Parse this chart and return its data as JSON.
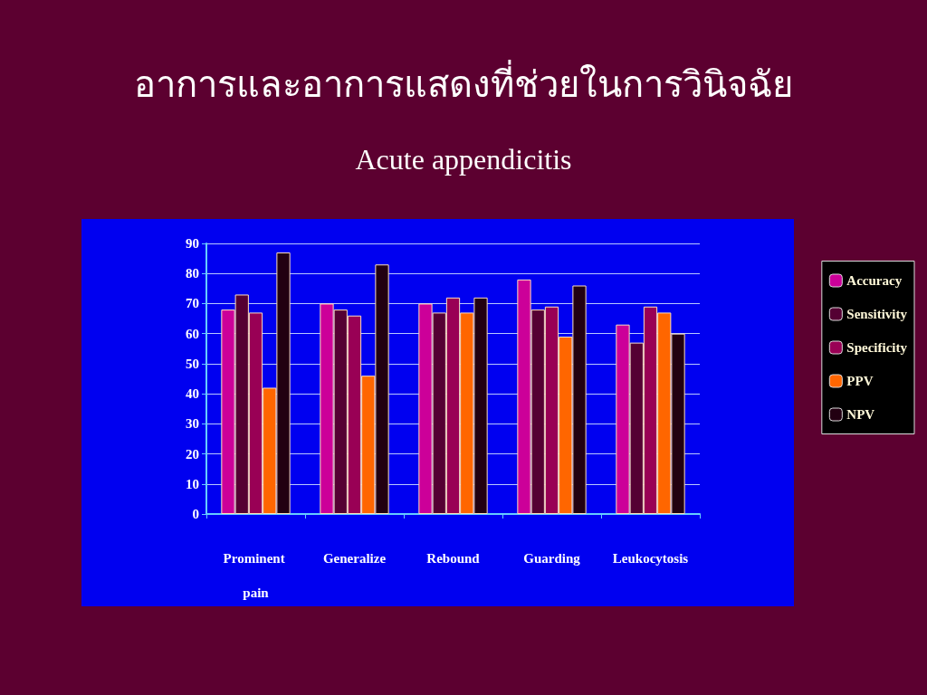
{
  "chart_data": {
    "type": "bar",
    "title": "อาการและอาการแสดงที่ช่วยในการวินิจฉัย",
    "subtitle": "Acute appendicitis",
    "categories": [
      "Prominent pain",
      "Generalize",
      "Rebound",
      "Guarding",
      "Leukocytosis"
    ],
    "series": [
      {
        "name": "Accuracy",
        "color": "#cc0099",
        "values": [
          68,
          70,
          70,
          78,
          63
        ]
      },
      {
        "name": "Sensitivity",
        "color": "#550033",
        "values": [
          73,
          68,
          67,
          68,
          57
        ]
      },
      {
        "name": "Specificity",
        "color": "#990055",
        "values": [
          67,
          66,
          72,
          69,
          69
        ]
      },
      {
        "name": "PPV",
        "color": "#ff6600",
        "values": [
          42,
          46,
          67,
          59,
          67
        ]
      },
      {
        "name": "NPV",
        "color": "#220011",
        "values": [
          87,
          83,
          72,
          76,
          60
        ]
      }
    ],
    "ylim": [
      0,
      90
    ],
    "yticks": [
      0,
      10,
      20,
      30,
      40,
      50,
      60,
      70,
      80,
      90
    ],
    "grid": "y",
    "legend": "right"
  }
}
